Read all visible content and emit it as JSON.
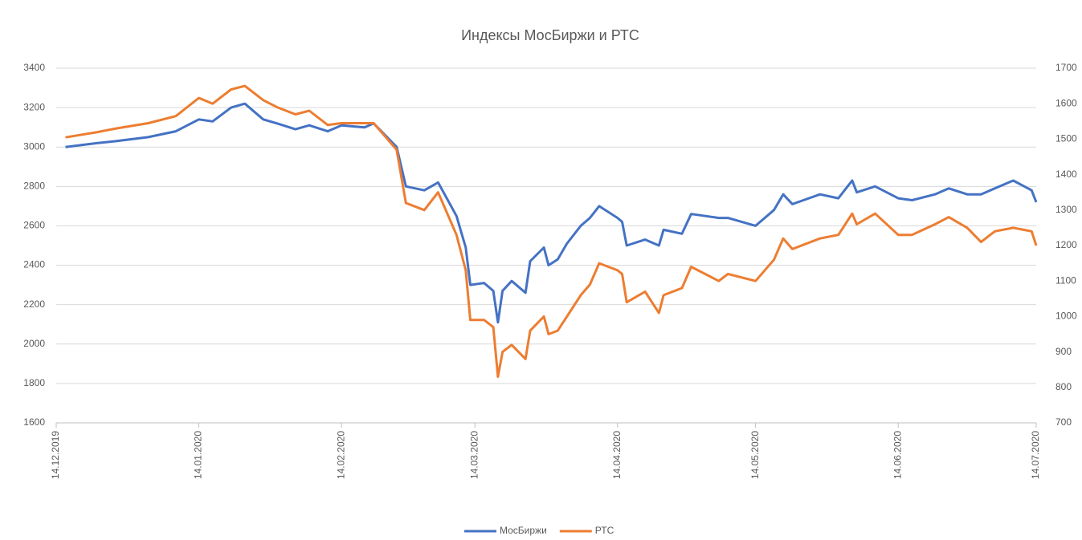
{
  "chart_data": {
    "type": "line",
    "title": "Индексы МосБиржи и РТС",
    "x": [
      "16.12.2019",
      "23.12.2019",
      "27.12.2019",
      "03.01.2020",
      "09.01.2020",
      "14.01.2020",
      "17.01.2020",
      "21.01.2020",
      "24.01.2020",
      "28.01.2020",
      "31.01.2020",
      "04.02.2020",
      "07.02.2020",
      "11.02.2020",
      "14.02.2020",
      "19.02.2020",
      "21.02.2020",
      "26.02.2020",
      "28.02.2020",
      "03.03.2020",
      "06.03.2020",
      "10.03.2020",
      "12.03.2020",
      "13.03.2020",
      "16.03.2020",
      "18.03.2020",
      "19.03.2020",
      "20.03.2020",
      "22.03.2020",
      "25.03.2020",
      "26.03.2020",
      "29.03.2020",
      "30.03.2020",
      "01.04.2020",
      "03.04.2020",
      "06.04.2020",
      "08.04.2020",
      "10.04.2020",
      "14.04.2020",
      "15.04.2020",
      "16.04.2020",
      "20.04.2020",
      "23.04.2020",
      "24.04.2020",
      "28.04.2020",
      "30.04.2020",
      "06.05.2020",
      "08.05.2020",
      "14.05.2020",
      "18.05.2020",
      "20.05.2020",
      "22.05.2020",
      "28.05.2020",
      "01.06.2020",
      "04.06.2020",
      "05.06.2020",
      "09.06.2020",
      "14.06.2020",
      "17.06.2020",
      "22.06.2020",
      "25.06.2020",
      "29.06.2020",
      "02.07.2020",
      "05.07.2020",
      "09.07.2020",
      "13.07.2020",
      "14.07.2020"
    ],
    "series": [
      {
        "name": "МосБиржи",
        "color": "#4472c4",
        "values": [
          3000,
          3020,
          3030,
          3050,
          3080,
          3140,
          3130,
          3200,
          3220,
          3140,
          3120,
          3090,
          3110,
          3080,
          3110,
          3100,
          3120,
          3000,
          2800,
          2780,
          2820,
          2650,
          2490,
          2300,
          2310,
          2270,
          2110,
          2270,
          2320,
          2260,
          2420,
          2490,
          2400,
          2430,
          2510,
          2600,
          2640,
          2700,
          2640,
          2620,
          2500,
          2530,
          2500,
          2580,
          2560,
          2660,
          2640,
          2640,
          2600,
          2680,
          2760,
          2710,
          2760,
          2740,
          2830,
          2770,
          2800,
          2740,
          2730,
          2760,
          2790,
          2760,
          2760,
          2790,
          2830,
          2780,
          2720
        ]
      },
      {
        "name": "РТС",
        "color": "#ed7d31",
        "axis": "y2",
        "values": [
          1505,
          1520,
          1530,
          1545,
          1565,
          1616,
          1600,
          1640,
          1650,
          1610,
          1590,
          1570,
          1580,
          1540,
          1545,
          1545,
          1545,
          1470,
          1320,
          1300,
          1350,
          1230,
          1130,
          990,
          990,
          970,
          830,
          900,
          920,
          880,
          960,
          1000,
          950,
          960,
          1000,
          1060,
          1090,
          1150,
          1130,
          1120,
          1040,
          1070,
          1010,
          1060,
          1080,
          1140,
          1100,
          1120,
          1100,
          1160,
          1220,
          1190,
          1220,
          1230,
          1290,
          1260,
          1290,
          1230,
          1230,
          1260,
          1280,
          1250,
          1210,
          1240,
          1250,
          1240,
          1200
        ]
      }
    ],
    "xlim": [
      "14.12.2019",
      "14.07.2020"
    ],
    "xticks": [
      "14.12.2019",
      "14.01.2020",
      "14.02.2020",
      "14.03.2020",
      "14.04.2020",
      "14.05.2020",
      "14.06.2020",
      "14.07.2020"
    ],
    "ylim": [
      1600,
      3400
    ],
    "yticks": [
      1600,
      1800,
      2000,
      2200,
      2400,
      2600,
      2800,
      3000,
      3200,
      3400
    ],
    "y2lim": [
      700,
      1700
    ],
    "y2ticks": [
      700,
      800,
      900,
      1000,
      1100,
      1200,
      1300,
      1400,
      1500,
      1600,
      1700
    ],
    "grid": true,
    "legend": "bottom"
  }
}
